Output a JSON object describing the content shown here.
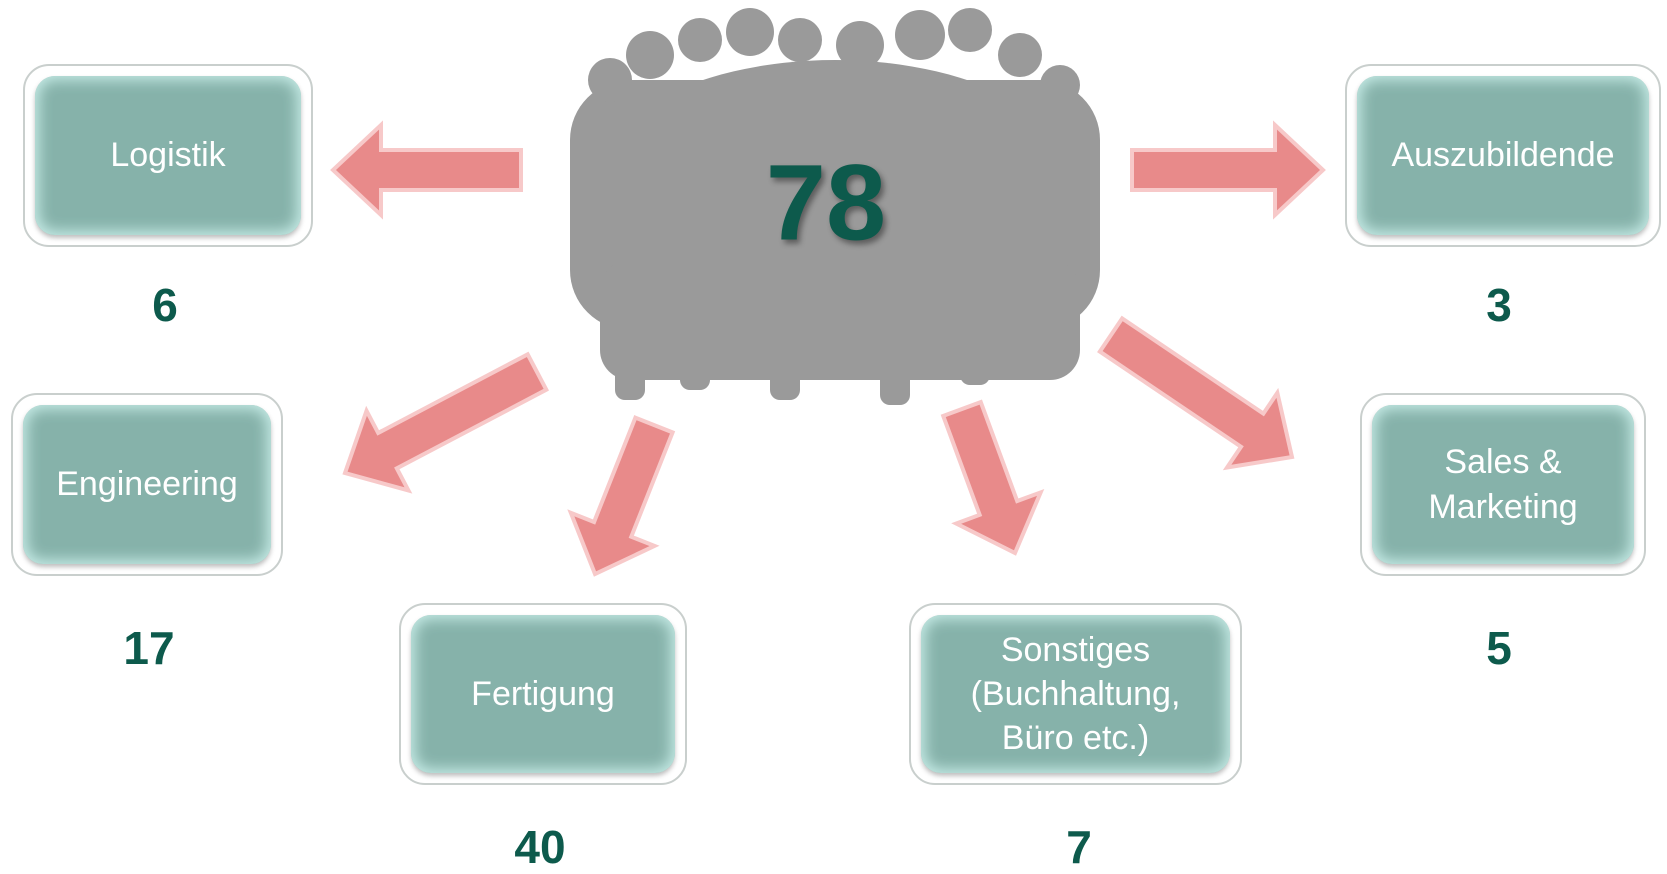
{
  "total": 78,
  "departments": [
    {
      "label": "Logistik",
      "count": 6
    },
    {
      "label": "Auszubildende",
      "count": 3
    },
    {
      "label": "Engineering",
      "count": 17
    },
    {
      "label": "Sales & Marketing",
      "count": 5
    },
    {
      "label": "Fertigung",
      "count": 40
    },
    {
      "label": "Sonstiges (Buchhaltung, Büro etc.)",
      "count": 7
    }
  ]
}
